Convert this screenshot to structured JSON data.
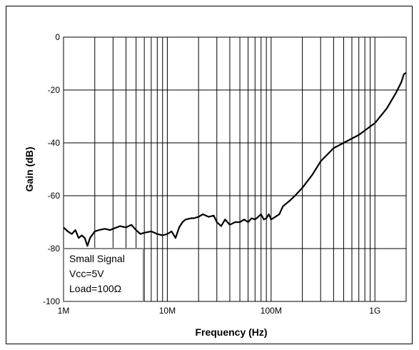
{
  "chart_data": {
    "type": "line",
    "title": "",
    "xlabel": "Frequency (Hz)",
    "ylabel": "Gain (dB)",
    "x_scale": "log",
    "xlim": [
      1000000,
      2000000000
    ],
    "ylim": [
      -100,
      0
    ],
    "x_ticks": [
      {
        "value": 1000000,
        "label": "1M"
      },
      {
        "value": 10000000,
        "label": "10M"
      },
      {
        "value": 100000000,
        "label": "100M"
      },
      {
        "value": 1000000000,
        "label": "1G"
      }
    ],
    "y_ticks": [
      {
        "value": 0,
        "label": "0"
      },
      {
        "value": -20,
        "label": "-20"
      },
      {
        "value": -40,
        "label": "-40"
      },
      {
        "value": -60,
        "label": "-60"
      },
      {
        "value": -80,
        "label": "-80"
      },
      {
        "value": -100,
        "label": "-100"
      }
    ],
    "grid": "log-minor vertical, major horizontal",
    "annotation": [
      "Small Signal",
      "Vcc=5V",
      "Load=100Ω"
    ],
    "annotation_position": "bottom-left",
    "series": [
      {
        "color": "#000000",
        "points": [
          [
            1000000,
            -72
          ],
          [
            1100000,
            -73.5
          ],
          [
            1200000,
            -74.5
          ],
          [
            1300000,
            -73
          ],
          [
            1400000,
            -76
          ],
          [
            1500000,
            -75
          ],
          [
            1600000,
            -76
          ],
          [
            1700000,
            -79
          ],
          [
            1800000,
            -76
          ],
          [
            2000000,
            -73.5
          ],
          [
            2200000,
            -73
          ],
          [
            2500000,
            -72.5
          ],
          [
            2800000,
            -73
          ],
          [
            3000000,
            -72.5
          ],
          [
            3500000,
            -71.5
          ],
          [
            4000000,
            -72
          ],
          [
            4500000,
            -71
          ],
          [
            5000000,
            -73
          ],
          [
            5500000,
            -74.5
          ],
          [
            6000000,
            -74
          ],
          [
            7000000,
            -73.5
          ],
          [
            8000000,
            -74.5
          ],
          [
            9000000,
            -75
          ],
          [
            10000000,
            -74.5
          ],
          [
            11000000,
            -73.5
          ],
          [
            12000000,
            -76
          ],
          [
            13000000,
            -72
          ],
          [
            14000000,
            -70
          ],
          [
            15000000,
            -69
          ],
          [
            17000000,
            -68.5
          ],
          [
            18000000,
            -68.5
          ],
          [
            20000000,
            -68
          ],
          [
            22000000,
            -67
          ],
          [
            25000000,
            -68
          ],
          [
            28000000,
            -67.5
          ],
          [
            30000000,
            -70
          ],
          [
            33000000,
            -71.5
          ],
          [
            36000000,
            -69
          ],
          [
            40000000,
            -71
          ],
          [
            45000000,
            -70
          ],
          [
            50000000,
            -70
          ],
          [
            55000000,
            -69
          ],
          [
            60000000,
            -70
          ],
          [
            65000000,
            -68.5
          ],
          [
            70000000,
            -69
          ],
          [
            75000000,
            -68
          ],
          [
            80000000,
            -67
          ],
          [
            85000000,
            -69
          ],
          [
            90000000,
            -68.5
          ],
          [
            95000000,
            -67
          ],
          [
            100000000,
            -69
          ],
          [
            110000000,
            -68
          ],
          [
            120000000,
            -67
          ],
          [
            130000000,
            -64
          ],
          [
            150000000,
            -62
          ],
          [
            170000000,
            -60
          ],
          [
            200000000,
            -57
          ],
          [
            250000000,
            -52
          ],
          [
            300000000,
            -47
          ],
          [
            400000000,
            -42
          ],
          [
            500000000,
            -40
          ],
          [
            700000000,
            -37
          ],
          [
            1000000000,
            -32.5
          ],
          [
            1300000000,
            -27
          ],
          [
            1600000000,
            -21
          ],
          [
            1800000000,
            -17
          ],
          [
            1900000000,
            -14
          ],
          [
            2000000000,
            -13.5
          ]
        ]
      }
    ]
  }
}
